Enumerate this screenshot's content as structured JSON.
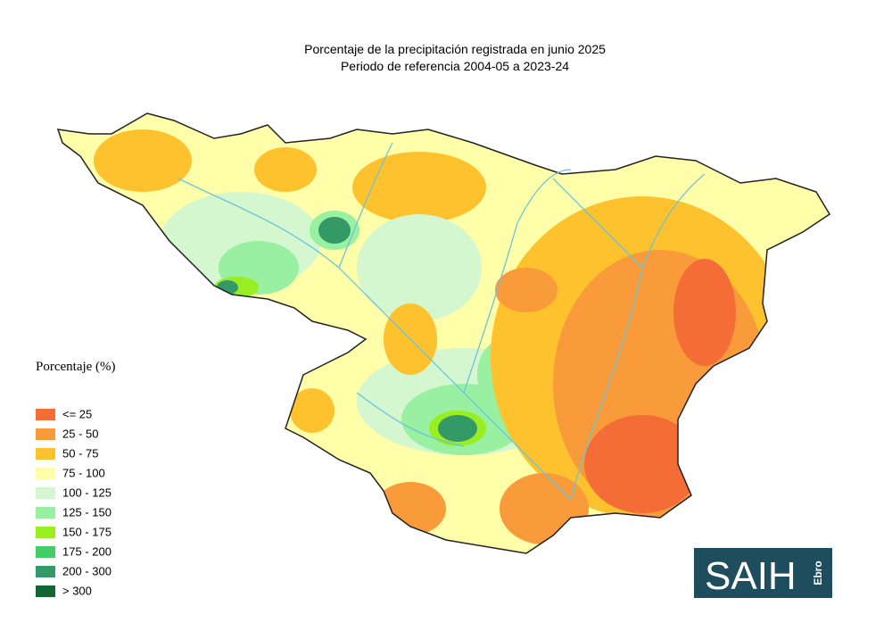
{
  "header": {
    "title": "Porcentaje de la precipitación registrada en junio 2025",
    "subtitle": "Periodo de referencia 2004-05 a 2023-24"
  },
  "legend": {
    "title": "Porcentaje (%)",
    "items": [
      {
        "label": "<= 25",
        "color": "#f46d36"
      },
      {
        "label": "25 - 50",
        "color": "#f99a3b"
      },
      {
        "label": "50 - 75",
        "color": "#fdc22d"
      },
      {
        "label": "75 - 100",
        "color": "#ffffaa"
      },
      {
        "label": "100 - 125",
        "color": "#d4f7cf"
      },
      {
        "label": "125 - 150",
        "color": "#98f0a0"
      },
      {
        "label": "150 - 175",
        "color": "#99ee22"
      },
      {
        "label": "175 - 200",
        "color": "#44cc66"
      },
      {
        "label": "200 - 300",
        "color": "#339966"
      },
      {
        "label": "> 300",
        "color": "#116633"
      }
    ]
  },
  "logo": {
    "text": "SAIH",
    "subtext": "Ebro"
  }
}
